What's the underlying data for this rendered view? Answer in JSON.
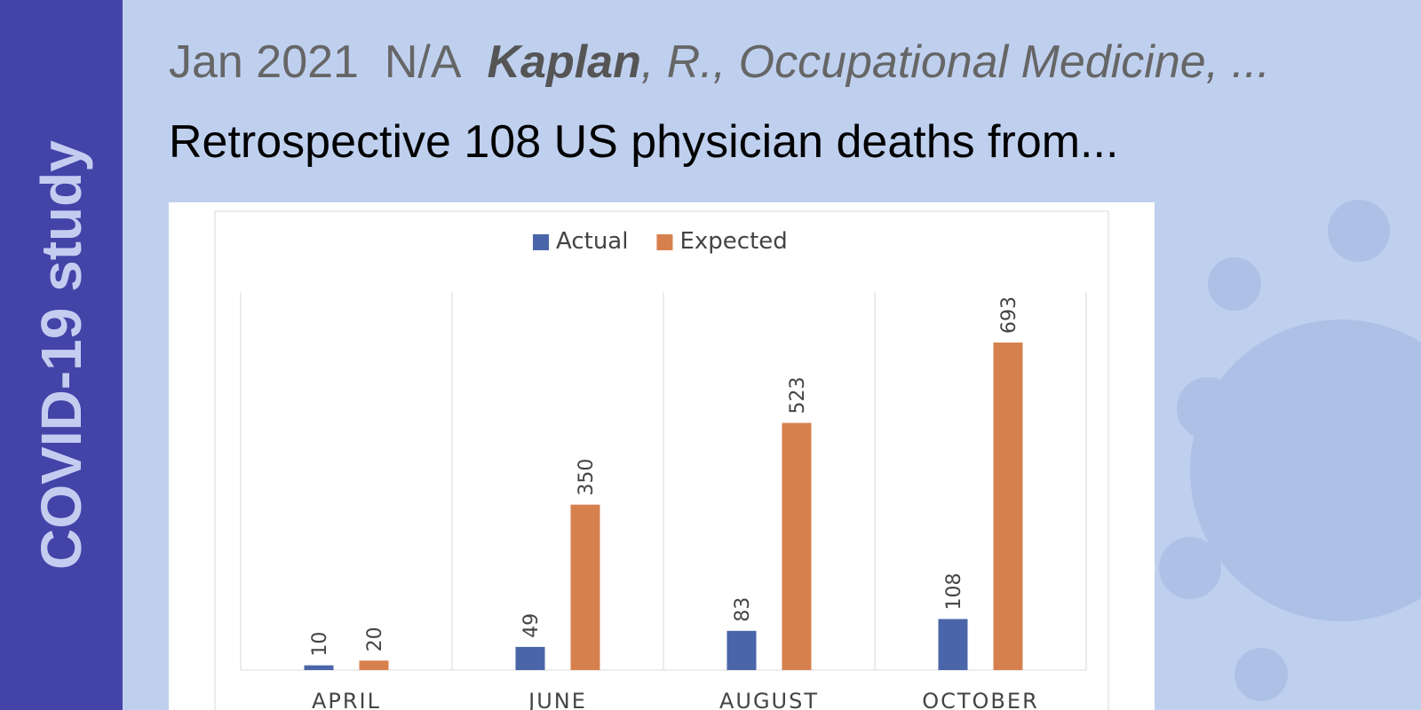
{
  "sidebar": {
    "label": "COVID-19 study"
  },
  "header": {
    "date": "Jan 2021",
    "status": "N/A",
    "author": "Kaplan",
    "citation": ", R., Occupational Medicine, ...",
    "title": "Retrospective 108 US physician deaths from..."
  },
  "chart_data": {
    "type": "bar",
    "categories": [
      "APRIL",
      "JUNE",
      "AUGUST",
      "OCTOBER"
    ],
    "series": [
      {
        "name": "Actual",
        "color": "#4a66a8",
        "values": [
          10,
          49,
          83,
          108
        ]
      },
      {
        "name": "Expected",
        "color": "#d6804e",
        "values": [
          20,
          350,
          523,
          693
        ]
      }
    ],
    "ylim": [
      0,
      800
    ],
    "legend": "top"
  }
}
